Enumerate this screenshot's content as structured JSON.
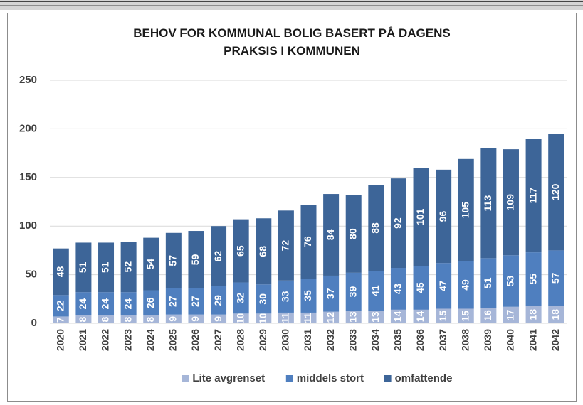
{
  "chart_data": {
    "type": "stacked_bar",
    "title": "BEHOV FOR KOMMUNAL BOLIG BASERT PÅ DAGENS PRAKSIS I KOMMUNEN",
    "categories": [
      "2020",
      "2021",
      "2022",
      "2023",
      "2024",
      "2025",
      "2026",
      "2027",
      "2028",
      "2029",
      "2030",
      "2031",
      "2032",
      "2033",
      "2034",
      "2035",
      "2036",
      "2037",
      "2038",
      "2039",
      "2040",
      "2041",
      "2042"
    ],
    "series": [
      {
        "name": "Lite avgrenset",
        "color": "#a6b6d8",
        "values": [
          7,
          8,
          8,
          8,
          8,
          9,
          9,
          9,
          10,
          10,
          11,
          11,
          12,
          13,
          13,
          14,
          14,
          15,
          15,
          16,
          17,
          18,
          18
        ]
      },
      {
        "name": "middels stort",
        "color": "#4f7fbf",
        "values": [
          22,
          24,
          24,
          24,
          26,
          27,
          27,
          29,
          32,
          30,
          33,
          35,
          37,
          39,
          41,
          43,
          45,
          47,
          49,
          51,
          53,
          55,
          57
        ]
      },
      {
        "name": "omfattende",
        "color": "#3d6598",
        "values": [
          48,
          51,
          51,
          52,
          54,
          57,
          59,
          62,
          65,
          68,
          72,
          76,
          84,
          80,
          88,
          92,
          101,
          96,
          105,
          113,
          109,
          117,
          120
        ]
      }
    ],
    "ylim": [
      0,
      250
    ],
    "yticks": [
      0,
      50,
      100,
      150,
      200,
      250
    ],
    "grid": true,
    "legend": "bottom"
  }
}
